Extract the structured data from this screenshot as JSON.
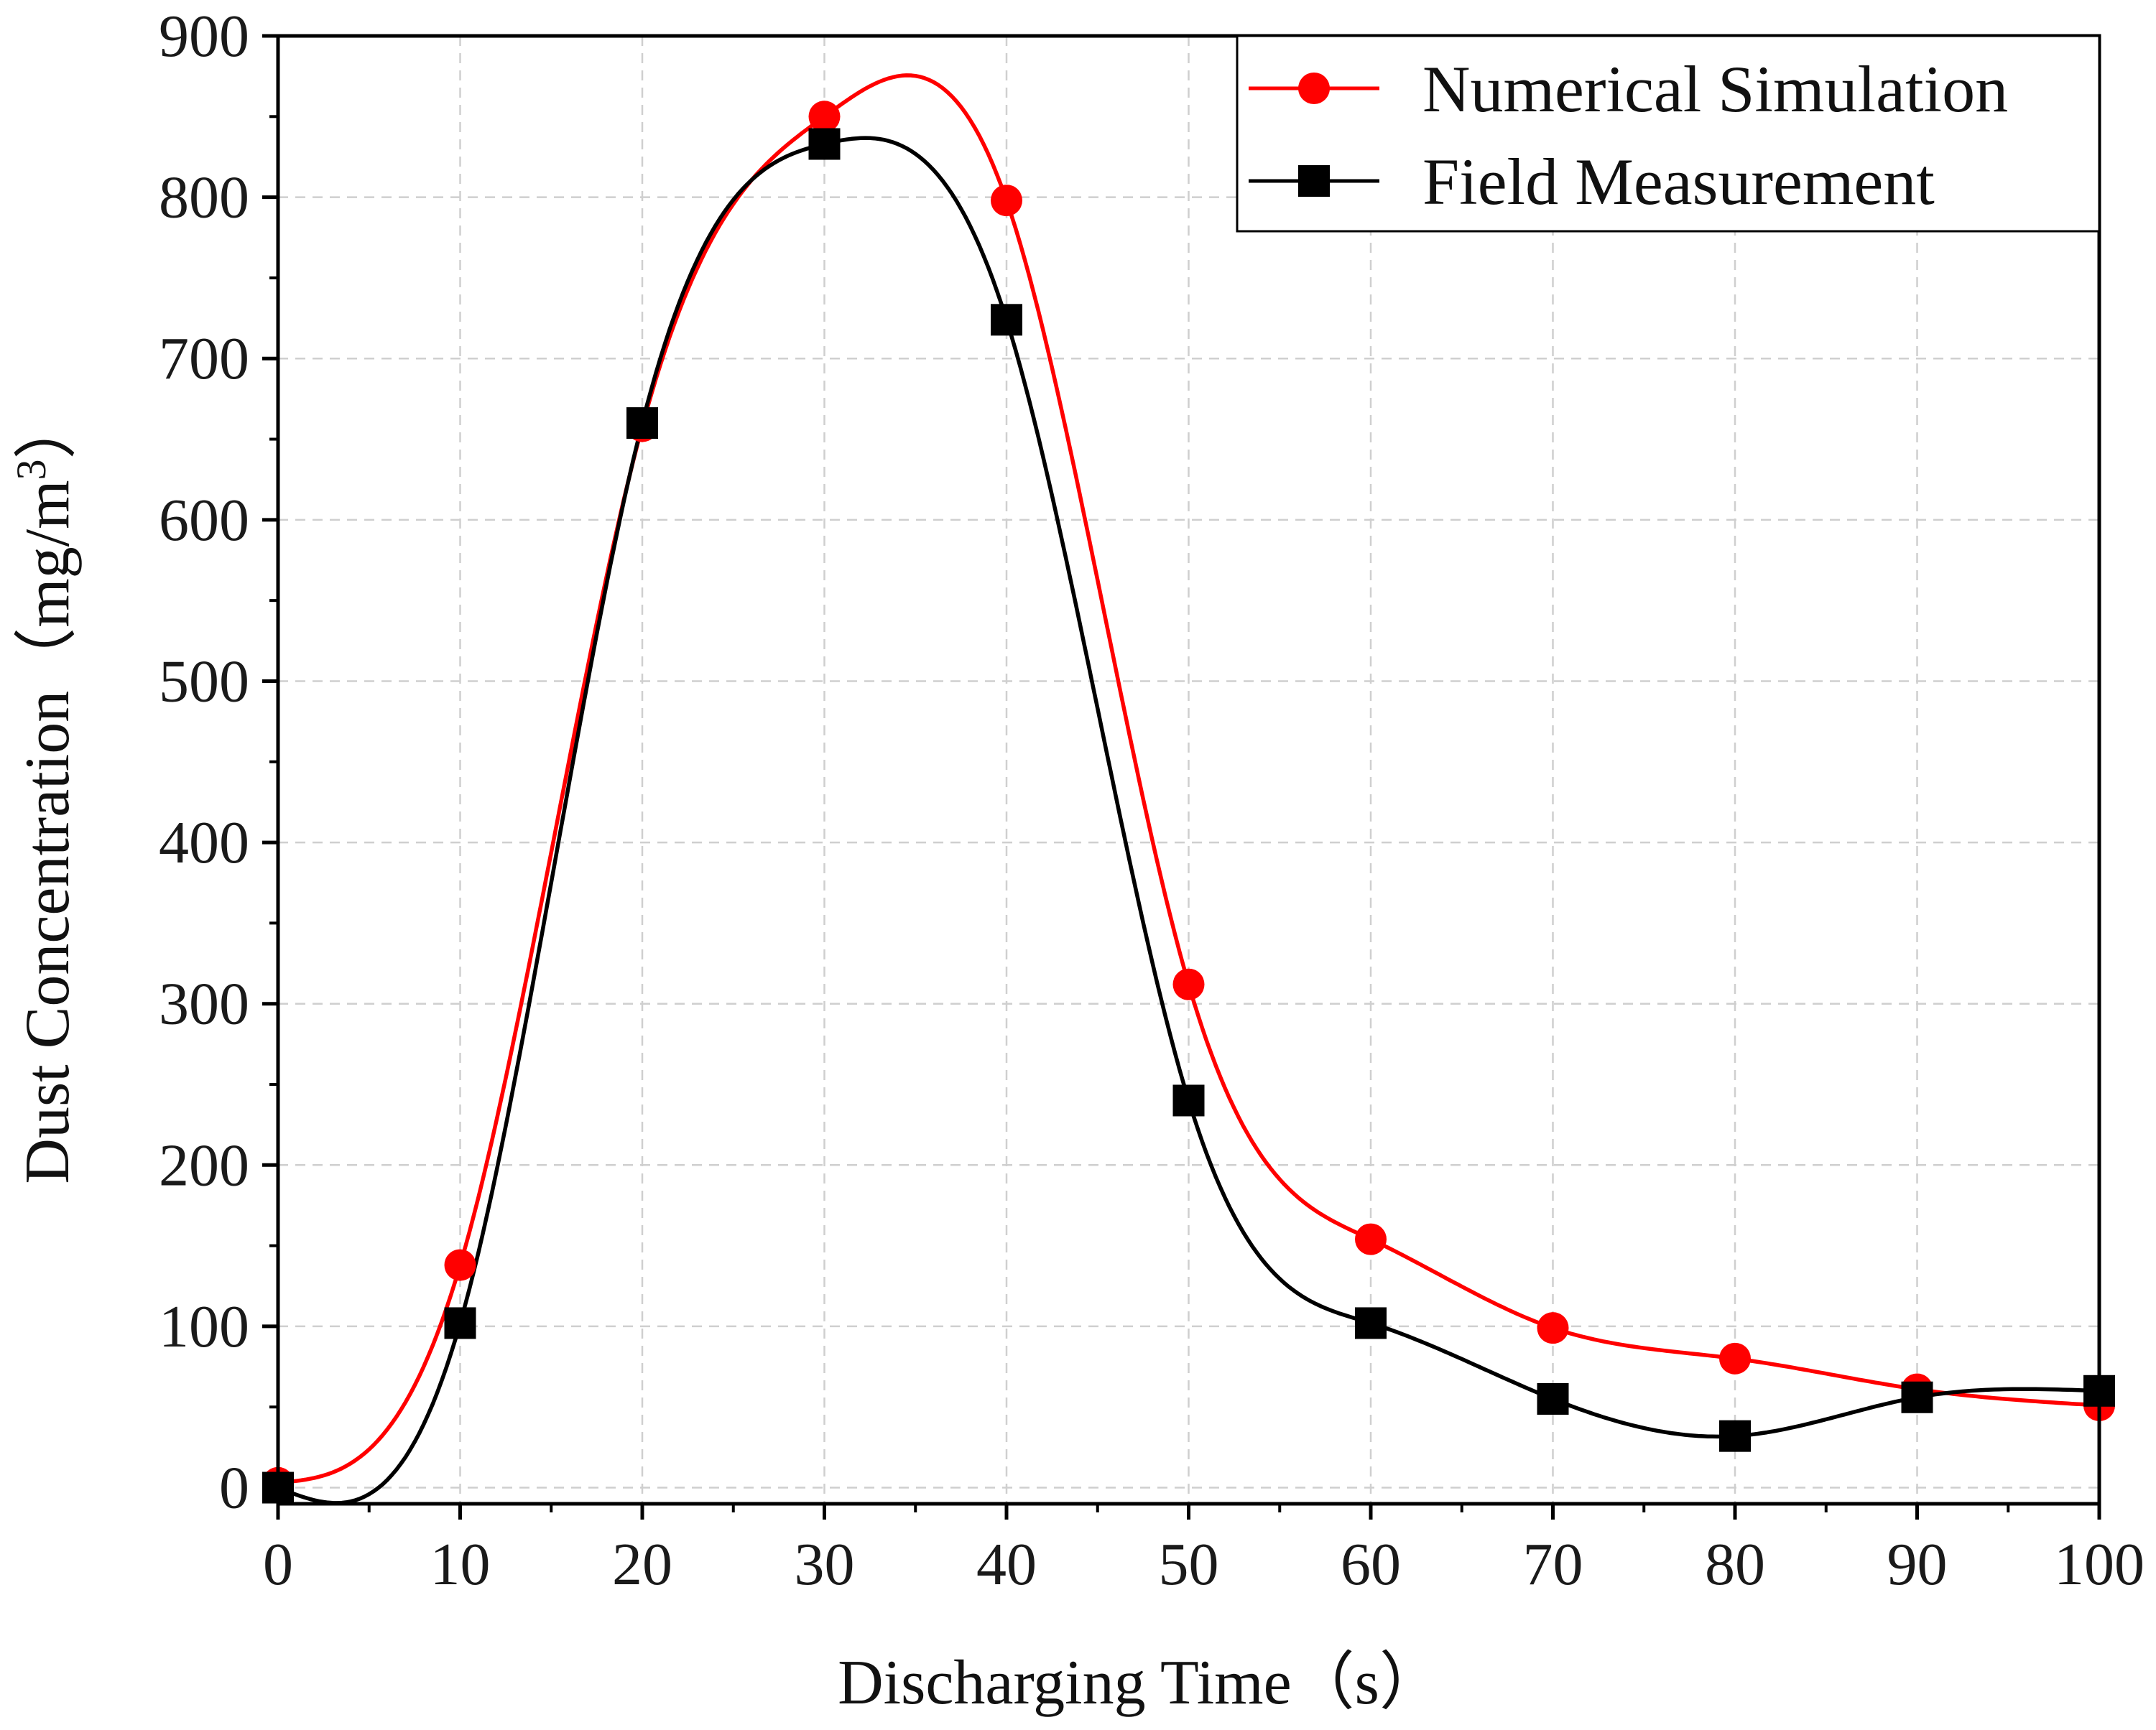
{
  "chart_data": {
    "type": "line",
    "smooth": true,
    "xlabel_main": "Discharging Time",
    "xlabel_unit": "（s）",
    "ylabel_main": "Dust Concentration",
    "ylabel_unit": "（mg/m",
    "ylabel_sup": "3",
    "ylabel_close": "）",
    "xlim": [
      0,
      100
    ],
    "ylim": [
      -10,
      900
    ],
    "xticks": [
      "0",
      "10",
      "20",
      "30",
      "40",
      "50",
      "60",
      "70",
      "80",
      "90",
      "100"
    ],
    "yticks": [
      "0",
      "100",
      "200",
      "300",
      "400",
      "500",
      "600",
      "700",
      "800",
      "900"
    ],
    "grid": true,
    "legend_position": "top-right",
    "series": [
      {
        "name": "Numerical Simulation",
        "color": "#ff0000",
        "marker": "circle",
        "x": [
          0,
          10,
          20,
          30,
          40,
          50,
          60,
          70,
          80,
          90,
          100
        ],
        "y": [
          3,
          138,
          658,
          850,
          798,
          312,
          154,
          99,
          80,
          61,
          51
        ]
      },
      {
        "name": "Field Measurement",
        "color": "#000000",
        "marker": "square",
        "x": [
          0,
          10,
          20,
          30,
          40,
          50,
          60,
          70,
          80,
          90,
          100
        ],
        "y": [
          0,
          102,
          660,
          833,
          724,
          240,
          102,
          55,
          32,
          56,
          60
        ]
      }
    ]
  }
}
